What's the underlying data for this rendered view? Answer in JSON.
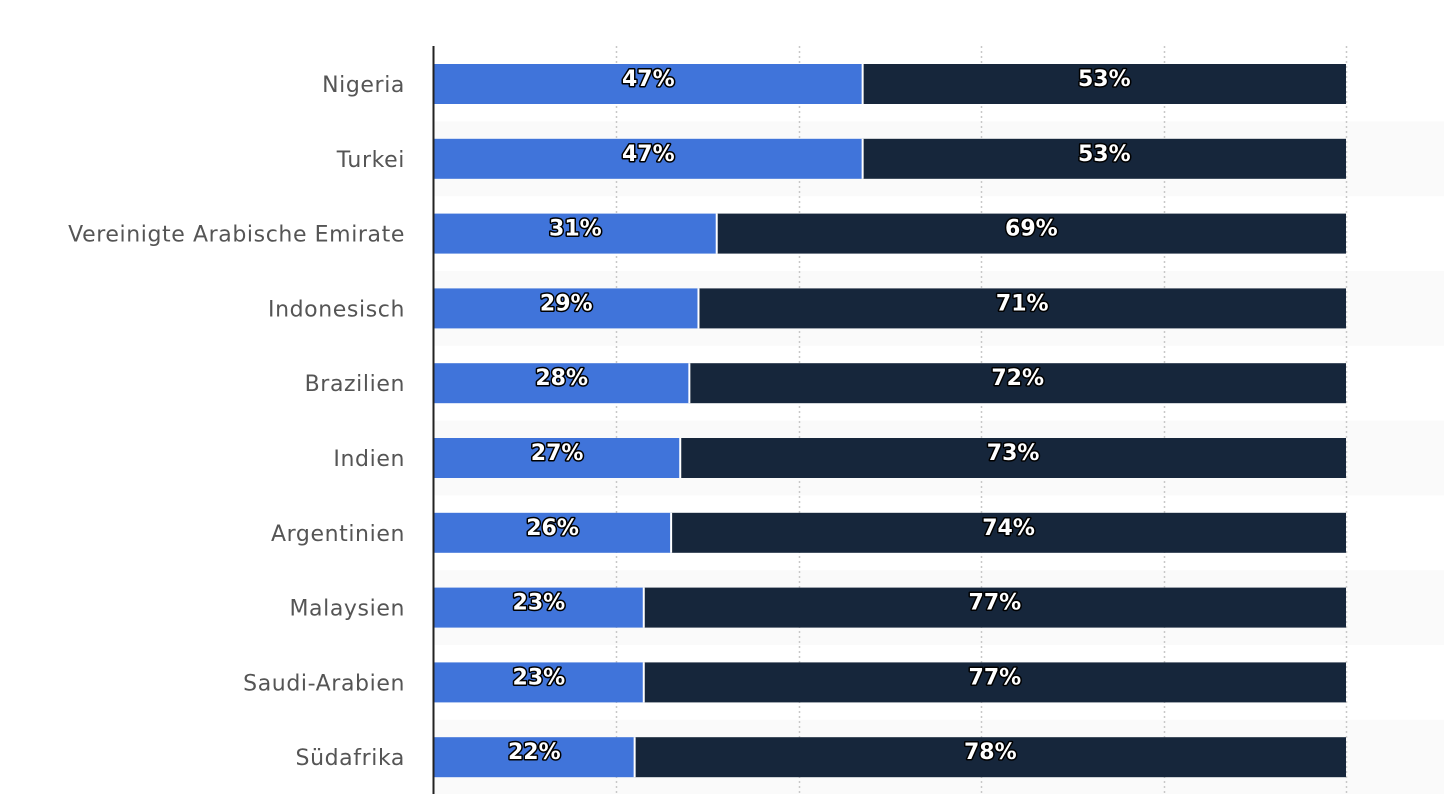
{
  "chart_data": {
    "type": "bar",
    "orientation": "horizontal",
    "stacked": "percent",
    "categories": [
      "Nigeria",
      "Turkei",
      "Vereinigte Arabische Emirate",
      "Indonesisch",
      "Brazilien",
      "Indien",
      "Argentinien",
      "Malaysien",
      "Saudi-Arabien",
      "Südafrika"
    ],
    "series": [
      {
        "values": [
          47,
          47,
          31,
          29,
          28,
          27,
          26,
          23,
          23,
          22
        ],
        "labels": [
          "47%",
          "47%",
          "31%",
          "29%",
          "28%",
          "27%",
          "26%",
          "23%",
          "23%",
          "22%"
        ],
        "color": "#4074da"
      },
      {
        "values": [
          53,
          53,
          69,
          71,
          72,
          73,
          74,
          77,
          77,
          78
        ],
        "labels": [
          "53%",
          "53%",
          "69%",
          "71%",
          "72%",
          "73%",
          "74%",
          "77%",
          "77%",
          "78%"
        ],
        "color": "#16263b"
      }
    ],
    "xlim": [
      0,
      100
    ],
    "title": "",
    "xlabel": "",
    "ylabel": "",
    "grid": "vertical dotted",
    "legend": "none"
  }
}
